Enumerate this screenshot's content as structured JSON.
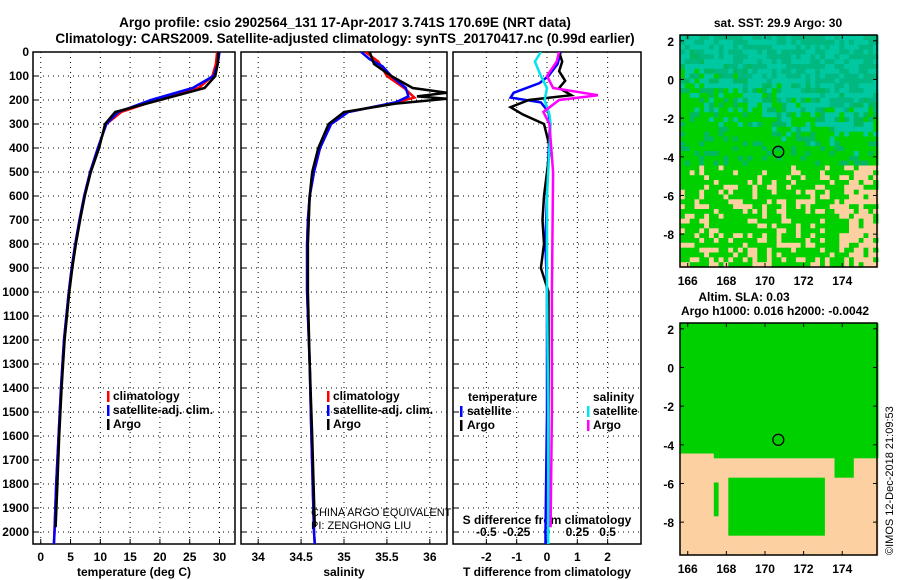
{
  "title_line1": "Argo profile: csio 2902564_131 17-Apr-2017 3.741S 170.69E (NRT data)",
  "title_line2": "Climatology: CARS2009. Satellite-adjusted climatology: synTS_20170417.nc (0.99d earlier)",
  "copyright": "©IMOS 12-Dec-2018 21:09:53",
  "annotation": {
    "line1": "CHINA ARGO EQUIVALENT",
    "line2": "PI: ZENGHONG LIU"
  },
  "colors": {
    "climatology": "#ff0000",
    "satellite": "#0000ff",
    "argo": "#000000",
    "sal_satellite": "#00e5ee",
    "sal_argo": "#ff00ff",
    "map_green": "#00d000",
    "map_teal": "#00c8a0",
    "map_land": "#fcd0a0"
  },
  "chart_data": [
    {
      "type": "line",
      "name": "temperature",
      "xlabel": "temperature (deg C)",
      "ylabel": "depth",
      "xlim": [
        -1.3,
        32.6
      ],
      "ylim": [
        2050,
        0
      ],
      "xticks": [
        0,
        5,
        10,
        15,
        20,
        25,
        30
      ],
      "yticks": [
        0,
        100,
        200,
        300,
        400,
        500,
        600,
        700,
        800,
        900,
        1000,
        1100,
        1200,
        1300,
        1400,
        1500,
        1600,
        1700,
        1800,
        1900,
        2000
      ],
      "legend": [
        "climatology",
        "satellite-adj. clim.",
        "Argo"
      ],
      "series": [
        {
          "name": "climatology",
          "color": "#ff0000",
          "points": [
            [
              0,
              29.6
            ],
            [
              50,
              29.4
            ],
            [
              100,
              28.8
            ],
            [
              150,
              26.5
            ],
            [
              200,
              19.5
            ],
            [
              250,
              13.5
            ],
            [
              300,
              11
            ],
            [
              400,
              9.6
            ],
            [
              500,
              8.3
            ],
            [
              600,
              7.3
            ],
            [
              700,
              6.5
            ],
            [
              800,
              5.8
            ],
            [
              900,
              5.2
            ],
            [
              1000,
              4.7
            ],
            [
              1200,
              3.9
            ],
            [
              1400,
              3.4
            ],
            [
              1600,
              3.0
            ],
            [
              1800,
              2.6
            ],
            [
              2000,
              2.3
            ],
            [
              2050,
              2.2
            ]
          ]
        },
        {
          "name": "satellite-adj. clim.",
          "color": "#0000ff",
          "points": [
            [
              0,
              30.0
            ],
            [
              50,
              29.7
            ],
            [
              100,
              29.0
            ],
            [
              150,
              25.5
            ],
            [
              200,
              18.5
            ],
            [
              250,
              13
            ],
            [
              300,
              11
            ],
            [
              400,
              9.6
            ],
            [
              500,
              8.3
            ],
            [
              600,
              7.3
            ],
            [
              700,
              6.5
            ],
            [
              800,
              5.8
            ],
            [
              900,
              5.2
            ],
            [
              1000,
              4.7
            ],
            [
              1200,
              3.9
            ],
            [
              1400,
              3.4
            ],
            [
              1600,
              3.0
            ],
            [
              1800,
              2.6
            ],
            [
              2000,
              2.3
            ],
            [
              2050,
              2.2
            ]
          ]
        },
        {
          "name": "Argo",
          "color": "#000000",
          "points": [
            [
              0,
              29.8
            ],
            [
              50,
              29.7
            ],
            [
              100,
              29.3
            ],
            [
              150,
              27.5
            ],
            [
              200,
              20
            ],
            [
              250,
              12.5
            ],
            [
              300,
              10.8
            ],
            [
              400,
              9.8
            ],
            [
              500,
              8.4
            ],
            [
              600,
              7.4
            ],
            [
              700,
              6.6
            ],
            [
              800,
              5.9
            ],
            [
              900,
              5.3
            ],
            [
              1000,
              4.8
            ],
            [
              1200,
              4.0
            ],
            [
              1400,
              3.5
            ],
            [
              1600,
              3.1
            ],
            [
              1800,
              2.8
            ],
            [
              1980,
              2.5
            ]
          ]
        }
      ]
    },
    {
      "type": "line",
      "name": "salinity",
      "xlabel": "salinity",
      "ylabel": "depth",
      "xlim": [
        33.8,
        36.2
      ],
      "ylim": [
        2050,
        0
      ],
      "xticks": [
        34,
        34.5,
        35,
        35.5,
        36
      ],
      "legend": [
        "climatology",
        "satellite-adj. clim.",
        "Argo"
      ],
      "series": [
        {
          "name": "climatology",
          "color": "#ff0000",
          "points": [
            [
              0,
              35.25
            ],
            [
              40,
              35.4
            ],
            [
              100,
              35.5
            ],
            [
              150,
              35.7
            ],
            [
              190,
              35.82
            ],
            [
              210,
              35.6
            ],
            [
              250,
              35.05
            ],
            [
              300,
              34.85
            ],
            [
              400,
              34.72
            ],
            [
              500,
              34.65
            ],
            [
              600,
              34.6
            ],
            [
              700,
              34.58
            ],
            [
              800,
              34.57
            ],
            [
              1000,
              34.57
            ],
            [
              1300,
              34.6
            ],
            [
              1600,
              34.62
            ],
            [
              2000,
              34.65
            ],
            [
              2050,
              34.66
            ]
          ]
        },
        {
          "name": "satellite-adj. clim.",
          "color": "#0000ff",
          "points": [
            [
              0,
              35.2
            ],
            [
              30,
              35.3
            ],
            [
              60,
              35.45
            ],
            [
              100,
              35.55
            ],
            [
              150,
              35.72
            ],
            [
              185,
              35.75
            ],
            [
              210,
              35.6
            ],
            [
              250,
              35.05
            ],
            [
              300,
              34.85
            ],
            [
              400,
              34.72
            ],
            [
              500,
              34.65
            ],
            [
              600,
              34.6
            ],
            [
              700,
              34.58
            ],
            [
              800,
              34.57
            ],
            [
              1000,
              34.57
            ],
            [
              1300,
              34.6
            ],
            [
              1600,
              34.62
            ],
            [
              2000,
              34.65
            ],
            [
              2050,
              34.66
            ]
          ]
        },
        {
          "name": "Argo",
          "color": "#000000",
          "points": [
            [
              0,
              35.3
            ],
            [
              50,
              35.35
            ],
            [
              100,
              35.55
            ],
            [
              150,
              35.8
            ],
            [
              170,
              36.2
            ],
            [
              185,
              35.85
            ],
            [
              195,
              36.2
            ],
            [
              215,
              35.6
            ],
            [
              250,
              35.0
            ],
            [
              300,
              34.82
            ],
            [
              400,
              34.7
            ],
            [
              500,
              34.63
            ],
            [
              600,
              34.6
            ],
            [
              800,
              34.58
            ],
            [
              1000,
              34.58
            ],
            [
              1300,
              34.6
            ],
            [
              1600,
              34.63
            ],
            [
              1980,
              34.66
            ]
          ]
        }
      ]
    },
    {
      "type": "line",
      "name": "difference",
      "xlabel": "T difference from climatology",
      "s_label": "S difference from climatology",
      "xlim": [
        -3.1,
        3.1
      ],
      "ylim": [
        2050,
        0
      ],
      "xticks": [
        -2,
        -1,
        0,
        1,
        2
      ],
      "s_xticks": [
        -0.5,
        -0.25,
        0,
        0.25,
        0.5
      ],
      "legend_temperature": {
        "title": "temperature",
        "items": [
          "satellite",
          "Argo"
        ]
      },
      "legend_salinity": {
        "title": "salinity",
        "items": [
          "satellite",
          "Argo"
        ]
      },
      "series": [
        {
          "name": "temperature satellite",
          "color": "#0000ff",
          "units": "T",
          "points": [
            [
              0,
              0.45
            ],
            [
              50,
              0.35
            ],
            [
              100,
              0.05
            ],
            [
              130,
              -0.25
            ],
            [
              170,
              -1.1
            ],
            [
              190,
              -1.2
            ],
            [
              210,
              -0.2
            ],
            [
              250,
              0.05
            ],
            [
              300,
              0.1
            ],
            [
              500,
              0.02
            ],
            [
              800,
              -0.05
            ],
            [
              1000,
              0
            ],
            [
              1500,
              0
            ],
            [
              2000,
              -0.05
            ],
            [
              2050,
              -0.05
            ]
          ]
        },
        {
          "name": "temperature Argo",
          "color": "#000000",
          "units": "T",
          "points": [
            [
              0,
              0.4
            ],
            [
              40,
              0.5
            ],
            [
              80,
              0.4
            ],
            [
              120,
              0.6
            ],
            [
              150,
              0.4
            ],
            [
              180,
              0.8
            ],
            [
              200,
              -0.6
            ],
            [
              230,
              -1.2
            ],
            [
              260,
              -0.8
            ],
            [
              300,
              -0.1
            ],
            [
              400,
              0.1
            ],
            [
              500,
              0
            ],
            [
              600,
              -0.1
            ],
            [
              700,
              -0.15
            ],
            [
              800,
              -0.1
            ],
            [
              900,
              -0.2
            ],
            [
              1000,
              0.05
            ],
            [
              1200,
              0.05
            ],
            [
              1500,
              0.05
            ],
            [
              1980,
              0.05
            ]
          ]
        },
        {
          "name": "salinity satellite",
          "color": "#00e5ee",
          "units": "S",
          "points": [
            [
              0,
              -0.05
            ],
            [
              40,
              -0.1
            ],
            [
              100,
              -0.05
            ],
            [
              150,
              0.0
            ],
            [
              200,
              -0.02
            ],
            [
              260,
              0.02
            ],
            [
              300,
              0.03
            ],
            [
              600,
              0.0
            ],
            [
              1000,
              0.0
            ],
            [
              1500,
              0.01
            ],
            [
              2050,
              0.01
            ]
          ]
        },
        {
          "name": "salinity Argo",
          "color": "#ff00ff",
          "units": "S",
          "points": [
            [
              0,
              0.1
            ],
            [
              40,
              0.08
            ],
            [
              100,
              0.0
            ],
            [
              150,
              0.05
            ],
            [
              180,
              0.42
            ],
            [
              200,
              0.1
            ],
            [
              250,
              -0.03
            ],
            [
              300,
              0.02
            ],
            [
              500,
              0.05
            ],
            [
              1000,
              0.04
            ],
            [
              1500,
              0.04
            ],
            [
              1980,
              0.03
            ]
          ]
        }
      ]
    },
    {
      "type": "heatmap",
      "name": "sst-map",
      "title": "sat. SST: 29.9 Argo: 30",
      "xticks": [
        166,
        168,
        170,
        172,
        174
      ],
      "yticks": [
        2,
        0,
        -2,
        -4,
        -6,
        -8
      ],
      "xlim": [
        165.6,
        175.8
      ],
      "ylim": [
        -9.7,
        2.3
      ],
      "marker": [
        170.69,
        -3.741
      ]
    },
    {
      "type": "heatmap",
      "name": "sla-map",
      "title": "Altim. SLA: 0.03",
      "subtitle": "Argo h1000: 0.016 h2000: -0.0042",
      "xticks": [
        166,
        168,
        170,
        172,
        174
      ],
      "yticks": [
        2,
        0,
        -2,
        -4,
        -6,
        -8
      ],
      "xlim": [
        165.6,
        175.8
      ],
      "ylim": [
        -9.7,
        2.3
      ],
      "marker": [
        170.69,
        -3.741
      ]
    }
  ]
}
